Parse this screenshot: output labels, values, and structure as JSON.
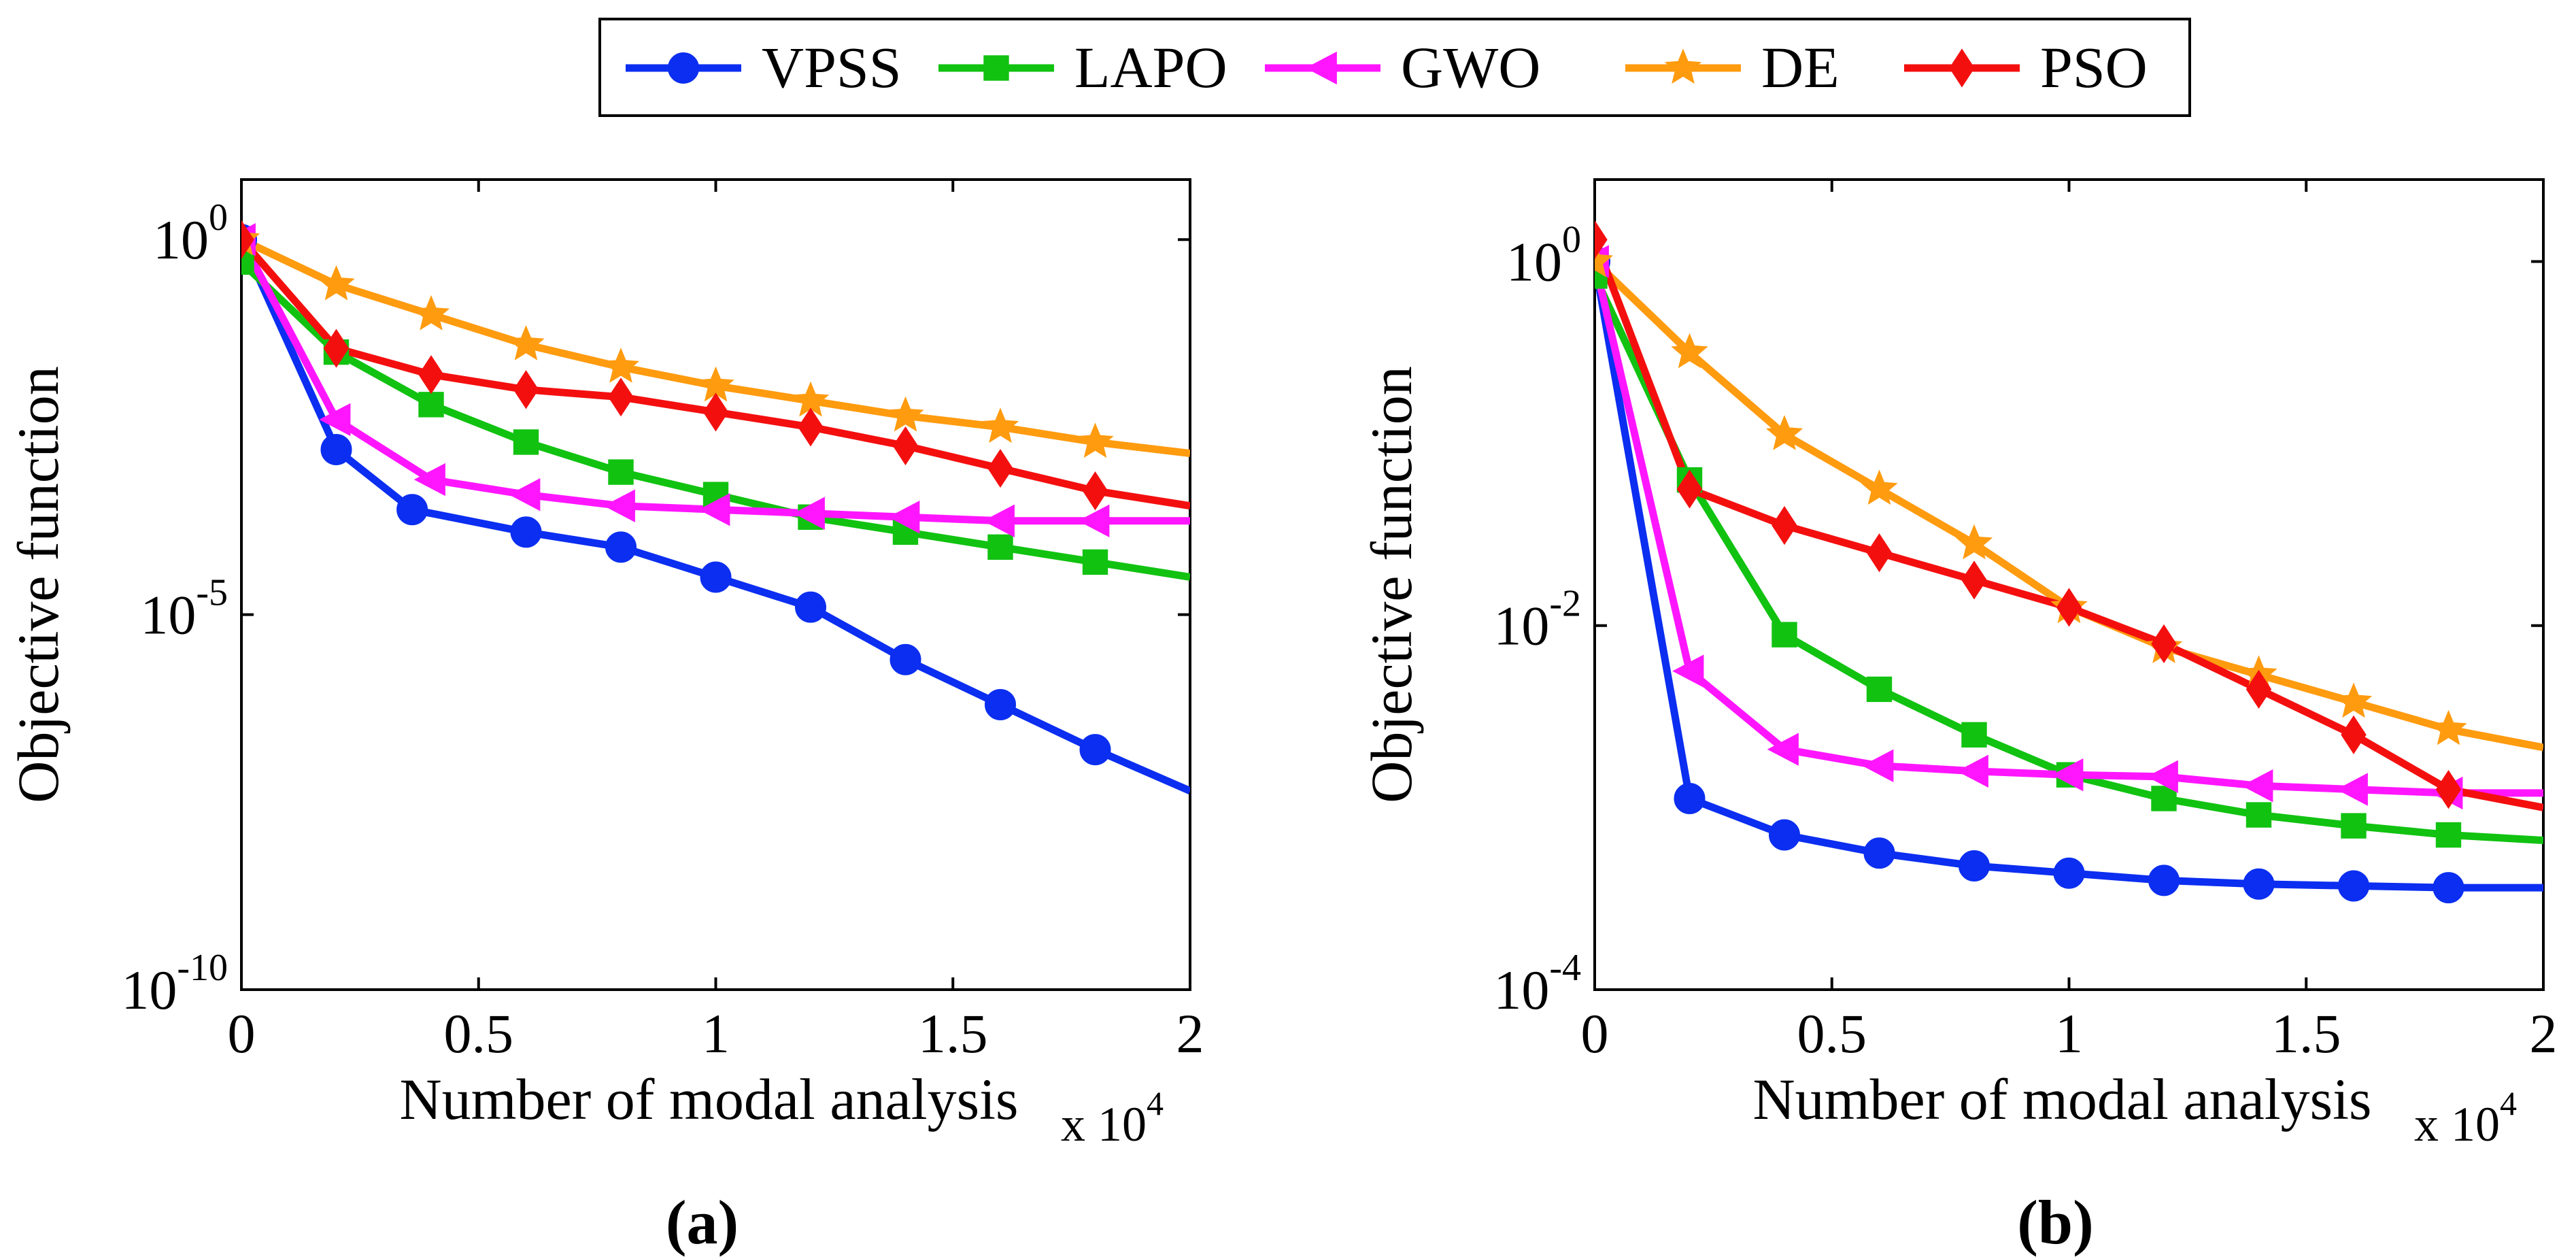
{
  "legend": {
    "location": "top-center",
    "entries": [
      {
        "name": "VPSS",
        "color": "#0b2ef0",
        "marker": "circle"
      },
      {
        "name": "LAPO",
        "color": "#11c211",
        "marker": "square"
      },
      {
        "name": "GWO",
        "color": "#ff16ff",
        "marker": "triangle-left"
      },
      {
        "name": "DE",
        "color": "#ff9b0f",
        "marker": "star"
      },
      {
        "name": "PSO",
        "color": "#f40f0f",
        "marker": "diamond"
      }
    ]
  },
  "chart_data": [
    {
      "type": "line",
      "panel_label": "(a)",
      "yscale": "log",
      "xlabel": "Number of modal analysis",
      "x_multiplier": "x 10",
      "x_multiplier_exp": "4",
      "ylabel": "Objective function",
      "xlim": [
        0,
        2
      ],
      "ylim_exp": [
        -10,
        0.8
      ],
      "xticks": [
        {
          "value": 0,
          "label": "0"
        },
        {
          "value": 0.5,
          "label": "0.5"
        },
        {
          "value": 1,
          "label": "1"
        },
        {
          "value": 1.5,
          "label": "1.5"
        },
        {
          "value": 2,
          "label": "2"
        }
      ],
      "yticks": [
        {
          "exp": 0,
          "base": "10",
          "sup": "0"
        },
        {
          "exp": -5,
          "base": "10",
          "sup": "-5"
        },
        {
          "exp": -10,
          "base": "10",
          "sup": "-10"
        }
      ],
      "series": [
        {
          "name": "VPSS",
          "x": [
            0,
            0.2,
            0.36,
            0.6,
            0.8,
            1.0,
            1.2,
            1.4,
            1.6,
            1.8,
            2.0
          ],
          "y_exp": [
            0,
            -2.8,
            -3.6,
            -3.9,
            -4.1,
            -4.5,
            -4.9,
            -5.6,
            -6.2,
            -6.8,
            -7.35
          ]
        },
        {
          "name": "LAPO",
          "x": [
            0,
            0.2,
            0.4,
            0.6,
            0.8,
            1.0,
            1.2,
            1.4,
            1.6,
            1.8,
            2.0
          ],
          "y_exp": [
            -0.3,
            -1.5,
            -2.2,
            -2.7,
            -3.1,
            -3.4,
            -3.7,
            -3.9,
            -4.1,
            -4.3,
            -4.5
          ]
        },
        {
          "name": "GWO",
          "x": [
            0,
            0.2,
            0.4,
            0.6,
            0.8,
            1.0,
            1.2,
            1.4,
            1.6,
            1.8,
            2.0
          ],
          "y_exp": [
            0,
            -2.4,
            -3.2,
            -3.4,
            -3.55,
            -3.6,
            -3.65,
            -3.7,
            -3.75,
            -3.75,
            -3.75
          ]
        },
        {
          "name": "DE",
          "x": [
            0,
            0.2,
            0.4,
            0.6,
            0.8,
            1.0,
            1.2,
            1.4,
            1.6,
            1.8,
            2.0
          ],
          "y_exp": [
            0,
            -0.6,
            -1.0,
            -1.4,
            -1.7,
            -1.95,
            -2.15,
            -2.35,
            -2.5,
            -2.7,
            -2.85
          ]
        },
        {
          "name": "PSO",
          "x": [
            0,
            0.2,
            0.4,
            0.6,
            0.8,
            1.0,
            1.2,
            1.4,
            1.6,
            1.8,
            2.0
          ],
          "y_exp": [
            0,
            -1.45,
            -1.8,
            -2.0,
            -2.1,
            -2.3,
            -2.5,
            -2.75,
            -3.05,
            -3.35,
            -3.55
          ]
        }
      ]
    },
    {
      "type": "line",
      "panel_label": "(b)",
      "yscale": "log",
      "xlabel": "Number of modal analysis",
      "x_multiplier": "x 10",
      "x_multiplier_exp": "4",
      "ylabel": "Objective function",
      "xlim": [
        0,
        2
      ],
      "ylim_exp": [
        -4,
        0.45
      ],
      "xticks": [
        {
          "value": 0,
          "label": "0"
        },
        {
          "value": 0.5,
          "label": "0.5"
        },
        {
          "value": 1,
          "label": "1"
        },
        {
          "value": 1.5,
          "label": "1.5"
        },
        {
          "value": 2,
          "label": "2"
        }
      ],
      "yticks": [
        {
          "exp": 0,
          "base": "10",
          "sup": "0"
        },
        {
          "exp": -2,
          "base": "10",
          "sup": "-2"
        },
        {
          "exp": -4,
          "base": "10",
          "sup": "-4"
        }
      ],
      "series": [
        {
          "name": "VPSS",
          "x": [
            0,
            0.2,
            0.4,
            0.6,
            0.8,
            1.0,
            1.2,
            1.4,
            1.6,
            1.8,
            2.0
          ],
          "y_exp": [
            0,
            -2.95,
            -3.15,
            -3.25,
            -3.32,
            -3.36,
            -3.4,
            -3.42,
            -3.43,
            -3.44,
            -3.44
          ]
        },
        {
          "name": "LAPO",
          "x": [
            0,
            0.2,
            0.4,
            0.6,
            0.8,
            1.0,
            1.2,
            1.4,
            1.6,
            1.8,
            2.0
          ],
          "y_exp": [
            -0.08,
            -1.2,
            -2.05,
            -2.35,
            -2.6,
            -2.82,
            -2.95,
            -3.04,
            -3.1,
            -3.15,
            -3.18
          ]
        },
        {
          "name": "GWO",
          "x": [
            0,
            0.2,
            0.4,
            0.6,
            0.8,
            1.0,
            1.2,
            1.4,
            1.6,
            1.8,
            2.0
          ],
          "y_exp": [
            0,
            -2.25,
            -2.68,
            -2.77,
            -2.8,
            -2.82,
            -2.83,
            -2.88,
            -2.9,
            -2.92,
            -2.92
          ]
        },
        {
          "name": "DE",
          "x": [
            0,
            0.2,
            0.4,
            0.6,
            0.8,
            1.0,
            1.2,
            1.4,
            1.6,
            1.8,
            2.0
          ],
          "y_exp": [
            0,
            -0.5,
            -0.95,
            -1.25,
            -1.55,
            -1.9,
            -2.12,
            -2.27,
            -2.42,
            -2.57,
            -2.67
          ]
        },
        {
          "name": "PSO",
          "x": [
            0,
            0.2,
            0.4,
            0.6,
            0.8,
            1.0,
            1.2,
            1.4,
            1.6,
            1.8,
            2.0
          ],
          "y_exp": [
            0.12,
            -1.25,
            -1.45,
            -1.6,
            -1.75,
            -1.9,
            -2.1,
            -2.35,
            -2.6,
            -2.9,
            -3.0
          ]
        }
      ]
    }
  ]
}
